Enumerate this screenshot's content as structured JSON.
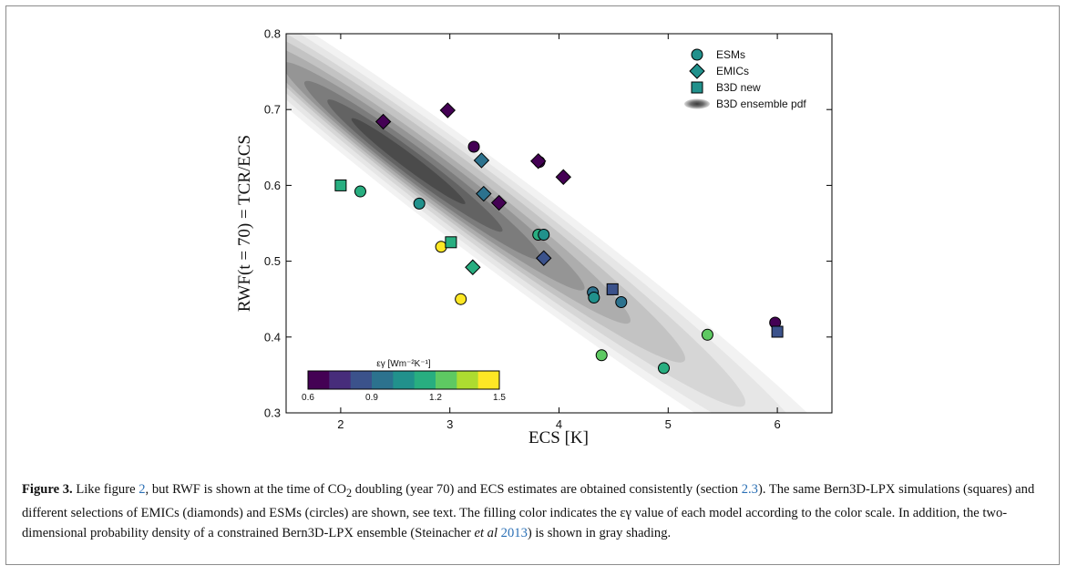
{
  "chart_data": {
    "type": "scatter",
    "xlabel": "ECS [K]",
    "ylabel": "RWF(t = 70) = TCR/ECS",
    "xlim": [
      1.5,
      6.5
    ],
    "ylim": [
      0.3,
      0.8
    ],
    "xticks": [
      "2",
      "3",
      "4",
      "5",
      "6"
    ],
    "yticks": [
      "0.3",
      "0.4",
      "0.5",
      "0.6",
      "0.7",
      "0.8"
    ],
    "legend_position": "top-right",
    "legend": [
      {
        "label": "ESMs",
        "marker": "circle"
      },
      {
        "label": "EMICs",
        "marker": "diamond"
      },
      {
        "label": "B3D new",
        "marker": "square"
      },
      {
        "label": "B3D ensemble pdf",
        "marker": "ellipse"
      }
    ],
    "colorbar": {
      "label": "εγ [Wm⁻²K⁻¹]",
      "min": 0.6,
      "max": 1.5,
      "tick_labels": [
        "0.6",
        "0.9",
        "1.2",
        "1.5"
      ],
      "colors": [
        "#440154",
        "#472d7b",
        "#3b528b",
        "#2c728e",
        "#21918c",
        "#28ae80",
        "#5ec962",
        "#addc30",
        "#fde725"
      ]
    },
    "series": [
      {
        "name": "ESMs",
        "marker": "circle",
        "points": [
          {
            "x": 3.22,
            "y": 0.651,
            "c": 0.63
          },
          {
            "x": 3.82,
            "y": 0.631,
            "c": 0.63
          },
          {
            "x": 2.18,
            "y": 0.592,
            "c": 1.1
          },
          {
            "x": 2.72,
            "y": 0.576,
            "c": 1.0
          },
          {
            "x": 3.81,
            "y": 0.535,
            "c": 1.1
          },
          {
            "x": 3.86,
            "y": 0.535,
            "c": 1.0
          },
          {
            "x": 2.92,
            "y": 0.519,
            "c": 1.48
          },
          {
            "x": 3.1,
            "y": 0.45,
            "c": 1.48
          },
          {
            "x": 4.31,
            "y": 0.459,
            "c": 0.9
          },
          {
            "x": 4.32,
            "y": 0.452,
            "c": 1.0
          },
          {
            "x": 4.57,
            "y": 0.446,
            "c": 0.95
          },
          {
            "x": 4.39,
            "y": 0.376,
            "c": 1.25
          },
          {
            "x": 4.96,
            "y": 0.359,
            "c": 1.15
          },
          {
            "x": 5.36,
            "y": 0.403,
            "c": 1.25
          },
          {
            "x": 5.98,
            "y": 0.419,
            "c": 0.7
          }
        ]
      },
      {
        "name": "EMICs",
        "marker": "diamond",
        "points": [
          {
            "x": 2.98,
            "y": 0.699,
            "c": 0.63
          },
          {
            "x": 2.39,
            "y": 0.684,
            "c": 0.63
          },
          {
            "x": 3.29,
            "y": 0.633,
            "c": 0.95
          },
          {
            "x": 3.81,
            "y": 0.632,
            "c": 0.63
          },
          {
            "x": 4.04,
            "y": 0.611,
            "c": 0.63
          },
          {
            "x": 3.31,
            "y": 0.589,
            "c": 0.95
          },
          {
            "x": 3.45,
            "y": 0.577,
            "c": 0.7
          },
          {
            "x": 3.86,
            "y": 0.504,
            "c": 0.85
          },
          {
            "x": 3.21,
            "y": 0.492,
            "c": 1.1
          }
        ]
      },
      {
        "name": "B3D new",
        "marker": "square",
        "points": [
          {
            "x": 2.0,
            "y": 0.6,
            "c": 1.1
          },
          {
            "x": 3.01,
            "y": 0.525,
            "c": 1.1
          },
          {
            "x": 4.49,
            "y": 0.463,
            "c": 0.85
          },
          {
            "x": 6.0,
            "y": 0.407,
            "c": 0.85
          }
        ]
      }
    ]
  },
  "caption": {
    "figure_label": "Figure 3.",
    "part1": " Like figure ",
    "ref1": "2",
    "part2": ", but RWF is shown at the time of CO",
    "co2_sub": "2",
    "part3": " doubling (year 70) and ECS estimates are obtained consistently (section ",
    "ref2": "2.3",
    "part4": "). The same Bern3D-LPX simulations (squares) and different selections of EMICs (diamonds) and ESMs (circles) are shown, see text. The filling color indicates the εγ value of each model according to the color scale. In addition, the two-dimensional probability density of a constrained Bern3D-LPX ensemble (Steinacher ",
    "etal": "et al",
    "ref3": "2013",
    "part5": ") is shown in gray shading."
  }
}
